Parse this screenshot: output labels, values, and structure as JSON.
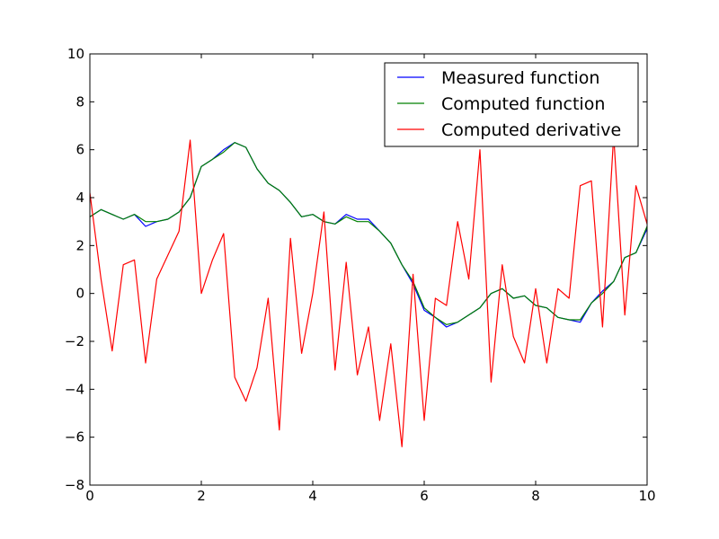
{
  "chart_data": {
    "type": "line",
    "title": "",
    "xlabel": "",
    "ylabel": "",
    "xlim": [
      0,
      10
    ],
    "ylim": [
      -8,
      10
    ],
    "x_ticks": [
      0,
      2,
      4,
      6,
      8,
      10
    ],
    "y_ticks": [
      -8,
      -6,
      -4,
      -2,
      0,
      2,
      4,
      6,
      8,
      10
    ],
    "x_tick_labels": [
      "0",
      "2",
      "4",
      "6",
      "8",
      "10"
    ],
    "y_tick_labels": [
      "−8",
      "−6",
      "−4",
      "−2",
      "0",
      "2",
      "4",
      "6",
      "8",
      "10"
    ],
    "grid": false,
    "legend_position": "top-right",
    "x": [
      0,
      0.2,
      0.4,
      0.6,
      0.8,
      1.0,
      1.2,
      1.4,
      1.6,
      1.8,
      2.0,
      2.2,
      2.4,
      2.6,
      2.8,
      3.0,
      3.2,
      3.4,
      3.6,
      3.8,
      4.0,
      4.2,
      4.4,
      4.6,
      4.8,
      5.0,
      5.2,
      5.4,
      5.6,
      5.8,
      6.0,
      6.2,
      6.4,
      6.6,
      6.8,
      7.0,
      7.2,
      7.4,
      7.6,
      7.8,
      8.0,
      8.2,
      8.4,
      8.6,
      8.8,
      9.0,
      9.2,
      9.4,
      9.6,
      9.8,
      10.0
    ],
    "series": [
      {
        "name": "Measured function",
        "color": "#0000ff",
        "values": [
          3.2,
          3.5,
          3.3,
          3.1,
          3.3,
          2.8,
          3.0,
          3.1,
          3.4,
          4.0,
          5.3,
          5.6,
          6.0,
          6.3,
          6.1,
          5.2,
          4.6,
          4.3,
          3.8,
          3.2,
          3.3,
          3.0,
          2.9,
          3.3,
          3.1,
          3.1,
          2.6,
          2.1,
          1.2,
          0.4,
          -0.7,
          -1.0,
          -1.4,
          -1.2,
          -0.9,
          -0.6,
          0.0,
          0.2,
          -0.2,
          -0.1,
          -0.5,
          -0.6,
          -1.0,
          -1.1,
          -1.2,
          -0.4,
          0.1,
          0.5,
          1.5,
          1.7,
          2.7
        ]
      },
      {
        "name": "Computed function",
        "color": "#008000",
        "values": [
          3.2,
          3.5,
          3.3,
          3.1,
          3.3,
          3.0,
          3.0,
          3.1,
          3.4,
          4.0,
          5.3,
          5.6,
          5.9,
          6.3,
          6.1,
          5.2,
          4.6,
          4.3,
          3.8,
          3.2,
          3.3,
          3.0,
          2.9,
          3.2,
          3.0,
          3.0,
          2.6,
          2.1,
          1.2,
          0.5,
          -0.6,
          -1.0,
          -1.3,
          -1.2,
          -0.9,
          -0.6,
          0.0,
          0.2,
          -0.2,
          -0.1,
          -0.5,
          -0.6,
          -1.0,
          -1.1,
          -1.1,
          -0.4,
          0.0,
          0.5,
          1.5,
          1.7,
          2.8
        ]
      },
      {
        "name": "Computed derivative",
        "color": "#ff0000",
        "values": [
          4.2,
          0.6,
          -2.4,
          1.2,
          1.4,
          -2.9,
          0.6,
          1.6,
          2.6,
          6.4,
          0.0,
          1.4,
          2.5,
          -3.5,
          -4.5,
          -3.1,
          -0.2,
          -5.7,
          2.3,
          -2.5,
          0.0,
          3.4,
          -3.2,
          1.3,
          -3.4,
          -1.4,
          -5.3,
          -2.1,
          -6.4,
          0.8,
          -5.3,
          -0.2,
          -0.5,
          3.0,
          0.6,
          6.0,
          -3.7,
          1.2,
          -1.8,
          -2.9,
          0.2,
          -2.9,
          0.2,
          -0.2,
          4.5,
          4.7,
          -1.4,
          6.6,
          -0.9,
          4.5,
          2.9
        ]
      }
    ]
  }
}
